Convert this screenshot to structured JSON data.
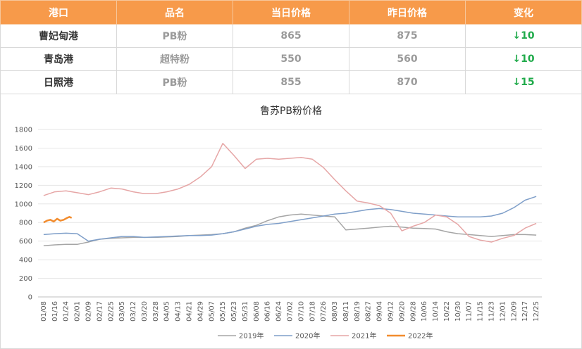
{
  "table": {
    "header_color": "#f79a4a",
    "headers": [
      "港口",
      "品名",
      "当日价格",
      "昨日价格",
      "变化"
    ],
    "rows": [
      {
        "port": "曹妃甸港",
        "product": "PB粉",
        "today": "865",
        "yesterday": "875",
        "change": "↓10"
      },
      {
        "port": "青岛港",
        "product": "超特粉",
        "today": "550",
        "yesterday": "560",
        "change": "↓10"
      },
      {
        "port": "日照港",
        "product": "PB粉",
        "today": "855",
        "yesterday": "870",
        "change": "↓15"
      }
    ],
    "change_color": "#1faa4a"
  },
  "chart_data": {
    "type": "line",
    "title": "鲁苏PB粉价格",
    "ylim": [
      0,
      1800
    ],
    "yticks": [
      0,
      200,
      400,
      600,
      800,
      1000,
      1200,
      1400,
      1600,
      1800
    ],
    "xlabels": [
      "01/08",
      "01/16",
      "01/24",
      "02/01",
      "02/09",
      "02/17",
      "02/25",
      "03/05",
      "03/12",
      "03/20",
      "03/28",
      "04/05",
      "04/13",
      "04/21",
      "04/29",
      "05/07",
      "05/15",
      "05/23",
      "05/31",
      "06/08",
      "06/16",
      "06/24",
      "07/02",
      "07/10",
      "07/18",
      "07/26",
      "08/03",
      "08/11",
      "08/19",
      "08/27",
      "09/04",
      "09/12",
      "09/20",
      "09/28",
      "10/06",
      "10/14",
      "10/22",
      "10/30",
      "11/07",
      "11/15",
      "11/23",
      "12/01",
      "12/09",
      "12/17",
      "12/25"
    ],
    "legend_position": "bottom",
    "grid": true,
    "series": [
      {
        "name": "2019年",
        "color": "#a5a5a5",
        "points": [
          [
            0,
            550
          ],
          [
            1,
            560
          ],
          [
            2,
            565
          ],
          [
            3,
            565
          ],
          [
            4,
            590
          ],
          [
            5,
            620
          ],
          [
            6,
            630
          ],
          [
            7,
            635
          ],
          [
            8,
            640
          ],
          [
            9,
            640
          ],
          [
            10,
            640
          ],
          [
            11,
            645
          ],
          [
            12,
            650
          ],
          [
            13,
            660
          ],
          [
            14,
            665
          ],
          [
            15,
            670
          ],
          [
            16,
            680
          ],
          [
            17,
            700
          ],
          [
            18,
            740
          ],
          [
            19,
            770
          ],
          [
            20,
            820
          ],
          [
            21,
            860
          ],
          [
            22,
            880
          ],
          [
            23,
            890
          ],
          [
            24,
            880
          ],
          [
            25,
            870
          ],
          [
            26,
            860
          ],
          [
            27,
            720
          ],
          [
            28,
            730
          ],
          [
            29,
            740
          ],
          [
            30,
            750
          ],
          [
            31,
            760
          ],
          [
            32,
            750
          ],
          [
            33,
            740
          ],
          [
            34,
            735
          ],
          [
            35,
            730
          ],
          [
            36,
            700
          ],
          [
            37,
            680
          ],
          [
            38,
            670
          ],
          [
            39,
            660
          ],
          [
            40,
            650
          ],
          [
            41,
            660
          ],
          [
            42,
            670
          ],
          [
            43,
            670
          ],
          [
            44,
            665
          ]
        ]
      },
      {
        "name": "2020年",
        "color": "#7f9fc9",
        "points": [
          [
            0,
            670
          ],
          [
            1,
            680
          ],
          [
            2,
            685
          ],
          [
            3,
            680
          ],
          [
            4,
            600
          ],
          [
            5,
            620
          ],
          [
            6,
            635
          ],
          [
            7,
            650
          ],
          [
            8,
            650
          ],
          [
            9,
            640
          ],
          [
            10,
            645
          ],
          [
            11,
            650
          ],
          [
            12,
            655
          ],
          [
            13,
            660
          ],
          [
            14,
            660
          ],
          [
            15,
            665
          ],
          [
            16,
            680
          ],
          [
            17,
            700
          ],
          [
            18,
            730
          ],
          [
            19,
            760
          ],
          [
            20,
            780
          ],
          [
            21,
            790
          ],
          [
            22,
            810
          ],
          [
            23,
            830
          ],
          [
            24,
            850
          ],
          [
            25,
            870
          ],
          [
            26,
            890
          ],
          [
            27,
            900
          ],
          [
            28,
            920
          ],
          [
            29,
            940
          ],
          [
            30,
            950
          ],
          [
            31,
            940
          ],
          [
            32,
            920
          ],
          [
            33,
            900
          ],
          [
            34,
            890
          ],
          [
            35,
            880
          ],
          [
            36,
            870
          ],
          [
            37,
            860
          ],
          [
            38,
            860
          ],
          [
            39,
            860
          ],
          [
            40,
            870
          ],
          [
            41,
            900
          ],
          [
            42,
            960
          ],
          [
            43,
            1040
          ],
          [
            44,
            1080
          ]
        ]
      },
      {
        "name": "2021年",
        "color": "#e6a6a6",
        "points": [
          [
            0,
            1090
          ],
          [
            1,
            1130
          ],
          [
            2,
            1140
          ],
          [
            3,
            1120
          ],
          [
            4,
            1100
          ],
          [
            5,
            1130
          ],
          [
            6,
            1170
          ],
          [
            7,
            1160
          ],
          [
            8,
            1130
          ],
          [
            9,
            1110
          ],
          [
            10,
            1110
          ],
          [
            11,
            1130
          ],
          [
            12,
            1160
          ],
          [
            13,
            1210
          ],
          [
            14,
            1290
          ],
          [
            15,
            1400
          ],
          [
            16,
            1650
          ],
          [
            17,
            1520
          ],
          [
            18,
            1380
          ],
          [
            19,
            1480
          ],
          [
            20,
            1490
          ],
          [
            21,
            1480
          ],
          [
            22,
            1490
          ],
          [
            23,
            1500
          ],
          [
            24,
            1480
          ],
          [
            25,
            1390
          ],
          [
            26,
            1260
          ],
          [
            27,
            1140
          ],
          [
            28,
            1030
          ],
          [
            29,
            1010
          ],
          [
            30,
            980
          ],
          [
            31,
            900
          ],
          [
            32,
            710
          ],
          [
            33,
            760
          ],
          [
            34,
            800
          ],
          [
            35,
            880
          ],
          [
            36,
            860
          ],
          [
            37,
            780
          ],
          [
            38,
            650
          ],
          [
            39,
            610
          ],
          [
            40,
            590
          ],
          [
            41,
            630
          ],
          [
            42,
            660
          ],
          [
            43,
            740
          ],
          [
            44,
            790
          ]
        ]
      },
      {
        "name": "2022年",
        "color": "#f28c2e",
        "points": [
          [
            0,
            800
          ],
          [
            0.3,
            820
          ],
          [
            0.6,
            830
          ],
          [
            0.9,
            810
          ],
          [
            1.2,
            840
          ],
          [
            1.5,
            820
          ],
          [
            1.8,
            830
          ],
          [
            2.1,
            850
          ],
          [
            2.3,
            860
          ],
          [
            2.5,
            850
          ]
        ]
      }
    ]
  }
}
